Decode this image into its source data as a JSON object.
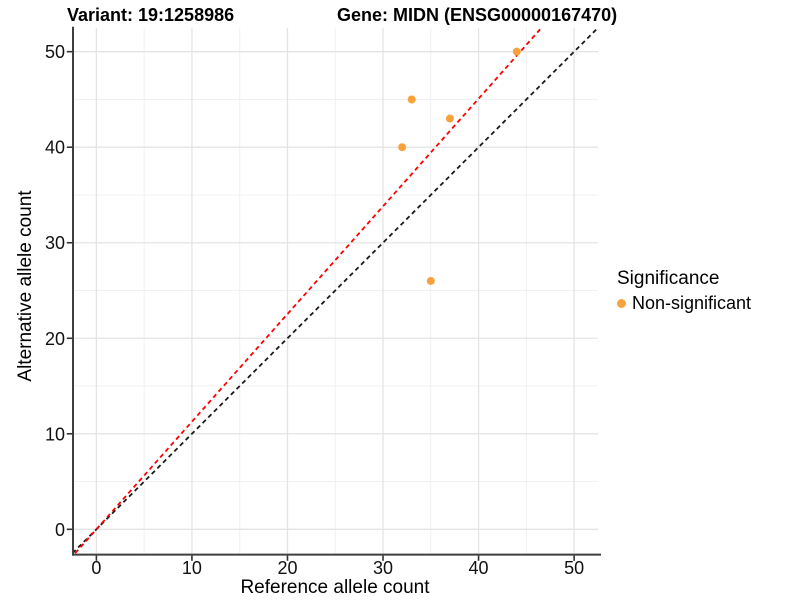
{
  "titles": {
    "left": "Variant: 19:1258986",
    "right": "Gene: MIDN (ENSG00000167470)"
  },
  "chart_data": {
    "type": "scatter",
    "xlabel": "Reference allele count",
    "ylabel": "Alternative allele count",
    "xlim": [
      -2.5,
      52.5
    ],
    "ylim": [
      -2.5,
      52.5
    ],
    "x_ticks": [
      0,
      10,
      20,
      30,
      40,
      50
    ],
    "y_ticks": [
      0,
      10,
      20,
      30,
      40,
      50
    ],
    "grid": "major+minor",
    "points": [
      {
        "x": 44,
        "y": 50
      },
      {
        "x": 33,
        "y": 45
      },
      {
        "x": 37,
        "y": 43
      },
      {
        "x": 32,
        "y": 40
      },
      {
        "x": 35,
        "y": 26
      }
    ],
    "point_color": "#F9A13C",
    "lines": [
      {
        "name": "identity-line",
        "slope": 1.0,
        "intercept": 0,
        "color": "#1A1A1A",
        "dash": true
      },
      {
        "name": "allelic-ratio-line",
        "slope": 1.127,
        "intercept": 0,
        "color": "#FF0000",
        "dash": true
      }
    ],
    "colors": {
      "grid_major": "#E4E4E4",
      "grid_minor": "#F1F1F1",
      "axis_line": "#3F3F3F",
      "tick_text": "#111111"
    },
    "legend": {
      "title": "Significance",
      "position": "right",
      "items": [
        {
          "label": "Non-significant",
          "color": "#F9A13C"
        }
      ]
    }
  }
}
